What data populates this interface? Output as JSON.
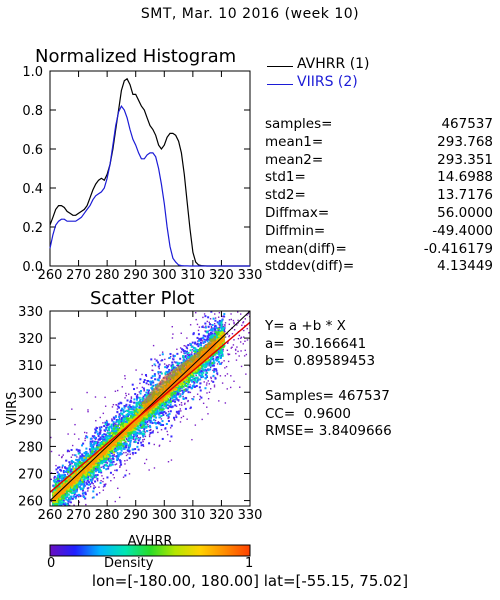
{
  "page": {
    "title": "SMT,  Mar. 10 2016 (week 10)"
  },
  "histogram": {
    "title": "Normalized Histogram",
    "legend": [
      {
        "label": "AVHRR (1)",
        "color": "#000000"
      },
      {
        "label": "VIIRS (2)",
        "color": "#1c1cd6"
      }
    ]
  },
  "stats": [
    {
      "label": "samples=",
      "value": "467537"
    },
    {
      "label": "mean1=",
      "value": "293.768"
    },
    {
      "label": "mean2=",
      "value": "293.351"
    },
    {
      "label": "std1=",
      "value": "14.6988"
    },
    {
      "label": "std2=",
      "value": "13.7176"
    },
    {
      "label": "Diffmax=",
      "value": "56.0000"
    },
    {
      "label": "Diffmin=",
      "value": "-49.4000"
    },
    {
      "label": "mean(diff)=",
      "value": "-0.416179"
    },
    {
      "label": "stddev(diff)=",
      "value": "4.13449"
    }
  ],
  "scatter": {
    "title": "Scatter Plot",
    "xlabel": "AVHRR",
    "ylabel": "VIIRS"
  },
  "fit": {
    "equation": "Y= a +b * X",
    "a": "a=  30.166641",
    "b": "b=  0.89589453",
    "samples": "Samples= 467537",
    "cc": "CC=  0.9600",
    "rmse": "RMSE= 3.8409666"
  },
  "colorbar": {
    "title": "Density",
    "min": "0",
    "max": "1"
  },
  "footer": "lon=[-180.00, 180.00] lat=[-55.15, 75.02]",
  "chart_data": [
    {
      "type": "line",
      "title": "Normalized Histogram",
      "xlim": [
        260,
        330
      ],
      "ylim": [
        0,
        1.0
      ],
      "x_ticks": [
        260,
        270,
        280,
        290,
        300,
        310,
        320,
        330
      ],
      "y_ticks": [
        0.0,
        0.2,
        0.4,
        0.6,
        0.8,
        1.0
      ],
      "x_tick_labels": [
        "260",
        "270",
        "280",
        "290",
        "300",
        "310",
        "320",
        "330"
      ],
      "y_tick_labels": [
        "0.0",
        "0.2",
        "0.4",
        "0.6",
        "0.8",
        "1.0"
      ],
      "series": [
        {
          "name": "AVHRR (1)",
          "color": "#000000",
          "x": [
            260,
            261,
            262,
            263,
            264,
            265,
            266,
            267,
            268,
            269,
            270,
            271,
            272,
            273,
            274,
            275,
            276,
            277,
            278,
            279,
            280,
            281,
            282,
            283,
            284,
            285,
            286,
            287,
            288,
            289,
            290,
            291,
            292,
            293,
            294,
            295,
            296,
            297,
            298,
            299,
            300,
            301,
            302,
            303,
            304,
            305,
            306,
            307,
            308,
            309,
            310,
            311,
            312,
            313,
            314,
            315,
            316,
            317,
            318,
            319,
            320,
            321,
            322,
            323,
            324,
            325,
            326,
            327,
            328,
            329,
            330
          ],
          "y": [
            0.21,
            0.25,
            0.29,
            0.31,
            0.31,
            0.3,
            0.28,
            0.27,
            0.26,
            0.26,
            0.27,
            0.28,
            0.29,
            0.31,
            0.35,
            0.39,
            0.42,
            0.44,
            0.45,
            0.44,
            0.47,
            0.52,
            0.6,
            0.7,
            0.8,
            0.9,
            0.95,
            0.96,
            0.93,
            0.88,
            0.88,
            0.85,
            0.82,
            0.8,
            0.76,
            0.72,
            0.7,
            0.67,
            0.62,
            0.6,
            0.62,
            0.66,
            0.68,
            0.68,
            0.67,
            0.64,
            0.58,
            0.47,
            0.33,
            0.19,
            0.07,
            0.02,
            0.005,
            0.002,
            0.001,
            0,
            0,
            0,
            0,
            0,
            0,
            0,
            0,
            0,
            0,
            0,
            0,
            0,
            0,
            0,
            0
          ]
        },
        {
          "name": "VIIRS (2)",
          "color": "#1c1cd6",
          "x": [
            260,
            261,
            262,
            263,
            264,
            265,
            266,
            267,
            268,
            269,
            270,
            271,
            272,
            273,
            274,
            275,
            276,
            277,
            278,
            279,
            280,
            281,
            282,
            283,
            284,
            285,
            286,
            287,
            288,
            289,
            290,
            291,
            292,
            293,
            294,
            295,
            296,
            297,
            298,
            299,
            300,
            301,
            302,
            303,
            304,
            305,
            306,
            307,
            308,
            309,
            310,
            311,
            312,
            313,
            314,
            315,
            316,
            317,
            318,
            319,
            320,
            321,
            322,
            323,
            324,
            325,
            326,
            327,
            328,
            329,
            330
          ],
          "y": [
            0.09,
            0.16,
            0.21,
            0.23,
            0.24,
            0.24,
            0.23,
            0.23,
            0.23,
            0.23,
            0.24,
            0.25,
            0.27,
            0.29,
            0.31,
            0.34,
            0.36,
            0.37,
            0.38,
            0.4,
            0.45,
            0.52,
            0.62,
            0.72,
            0.79,
            0.82,
            0.8,
            0.76,
            0.7,
            0.65,
            0.62,
            0.58,
            0.55,
            0.55,
            0.57,
            0.58,
            0.58,
            0.56,
            0.5,
            0.42,
            0.32,
            0.2,
            0.1,
            0.04,
            0.02,
            0.005,
            0.002,
            0.001,
            0.0005,
            0,
            0,
            0,
            0,
            0,
            0,
            0,
            0,
            0,
            0,
            0,
            0,
            0,
            0,
            0,
            0,
            0,
            0,
            0,
            0,
            0,
            0
          ]
        }
      ]
    },
    {
      "type": "scatter",
      "title": "Scatter Plot",
      "xlabel": "AVHRR",
      "ylabel": "VIIRS",
      "xlim": [
        260,
        330
      ],
      "ylim": [
        258,
        330
      ],
      "x_ticks": [
        260,
        270,
        280,
        290,
        300,
        310,
        320,
        330
      ],
      "y_ticks": [
        260,
        270,
        280,
        290,
        300,
        310,
        320,
        330
      ],
      "x_tick_labels": [
        "260",
        "270",
        "280",
        "290",
        "300",
        "310",
        "320",
        "330"
      ],
      "y_tick_labels": [
        "260",
        "270",
        "280",
        "290",
        "300",
        "310",
        "320",
        "330"
      ],
      "fit_line": {
        "a": 30.166641,
        "b": 0.89589453
      },
      "colormap": {
        "label": "Density",
        "min": 0,
        "max": 1,
        "colors": [
          "#6a0fbf",
          "#2020ff",
          "#00b4ff",
          "#00e6b4",
          "#28dc28",
          "#b4e600",
          "#ffd200",
          "#ff8c00",
          "#ff4000"
        ]
      }
    }
  ]
}
